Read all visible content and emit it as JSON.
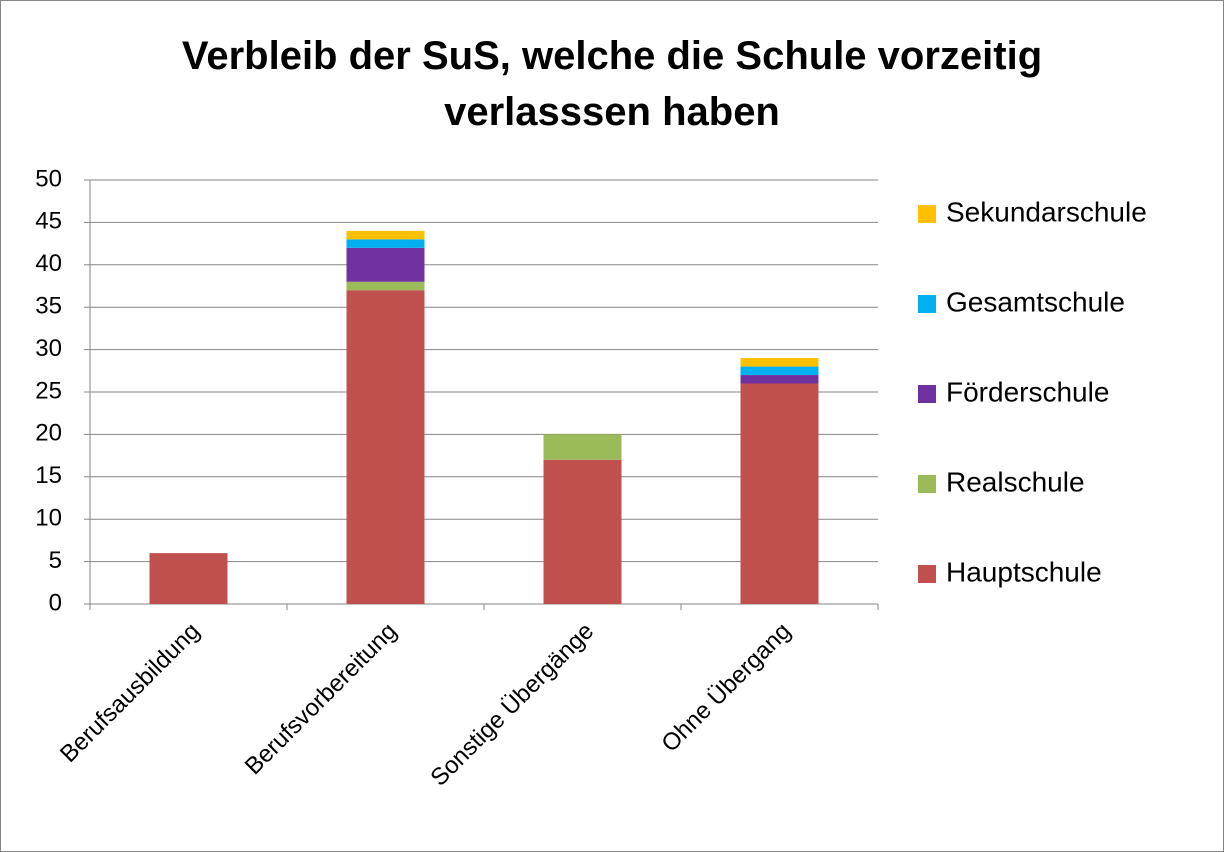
{
  "chart_data": {
    "type": "stacked_bar",
    "title": "Verbleib der SuS, welche die Schule vorzeitig verlasssen haben",
    "categories": [
      "Berufsausbildung",
      "Berufsvorbereitung",
      "Sonstige Übergänge",
      "Ohne Übergang"
    ],
    "series": [
      {
        "name": "Hauptschule",
        "color": "#c0504d",
        "values": [
          6,
          37,
          17,
          26
        ]
      },
      {
        "name": "Realschule",
        "color": "#9bbb59",
        "values": [
          0,
          1,
          3,
          0
        ]
      },
      {
        "name": "Förderschule",
        "color": "#7030a0",
        "values": [
          0,
          4,
          0,
          1
        ]
      },
      {
        "name": "Gesamtschule",
        "color": "#00b0f0",
        "values": [
          0,
          1,
          0,
          1
        ]
      },
      {
        "name": "Sekundarschule",
        "color": "#ffc000",
        "values": [
          0,
          1,
          0,
          1
        ]
      }
    ],
    "ylim": [
      0,
      50
    ],
    "yticks": [
      0,
      5,
      10,
      15,
      20,
      25,
      30,
      35,
      40,
      45,
      50
    ],
    "grid": true,
    "legend": "right"
  }
}
